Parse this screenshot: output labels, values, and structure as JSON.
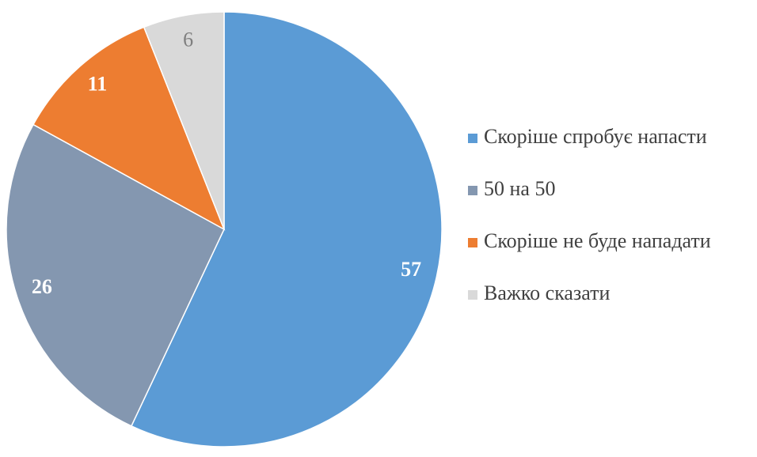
{
  "chart_data": {
    "type": "pie",
    "categories": [
      "Скоріше спробує напасти",
      "50 на 50",
      "Скоріше не буде нападати",
      "Важко сказати"
    ],
    "values": [
      57,
      26,
      11,
      6
    ],
    "colors": [
      "#5b9bd5",
      "#8497b0",
      "#ed7d31",
      "#d9d9d9"
    ],
    "legend": "right"
  }
}
